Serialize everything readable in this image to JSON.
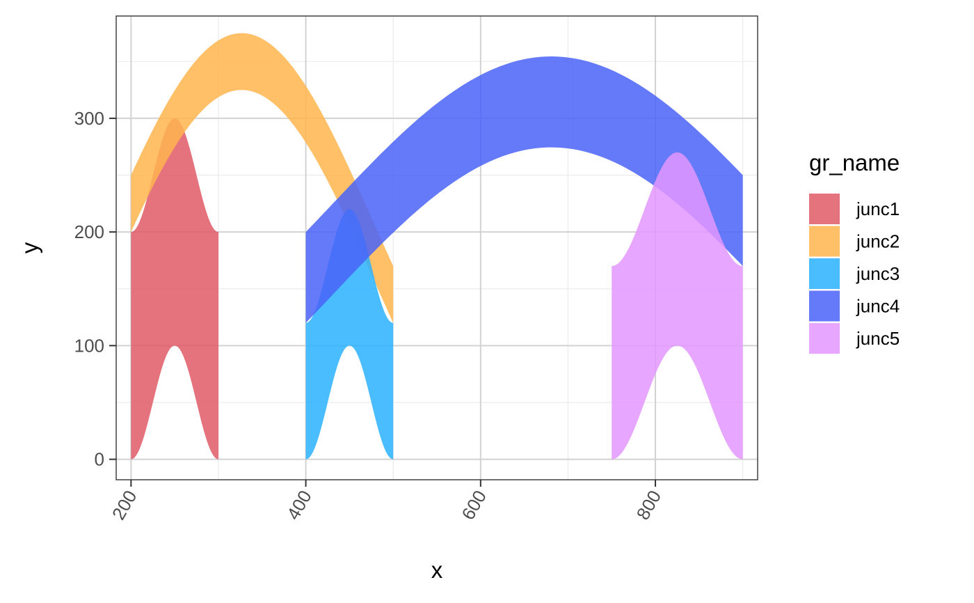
{
  "chart_data": {
    "type": "area",
    "title": "",
    "xlabel": "x",
    "ylabel": "y",
    "xlim": [
      183,
      917
    ],
    "ylim": [
      -18,
      390
    ],
    "x_ticks": [
      200,
      400,
      600,
      800
    ],
    "x_tick_labels": [
      "200",
      "400",
      "600",
      "800"
    ],
    "y_ticks": [
      0,
      100,
      200,
      300
    ],
    "y_tick_labels": [
      "0",
      "100",
      "200",
      "300"
    ],
    "x_minor_ticks": [
      300,
      500,
      700,
      900
    ],
    "y_minor_ticks": [
      50,
      150,
      250,
      350
    ],
    "grid": true,
    "legend": {
      "title": "gr_name",
      "position": "right"
    },
    "series": [
      {
        "name": "junc1",
        "color": "#E05B67",
        "x0": 200,
        "x1": 300,
        "upper": {
          "kind": "bump",
          "base": 200,
          "peak": 300
        },
        "lower": {
          "kind": "bump",
          "base": 0,
          "peak": 100
        }
      },
      {
        "name": "junc2",
        "color": "#FFB54D",
        "x0": 200,
        "x1": 500,
        "upper": {
          "kind": "arc",
          "start": 250,
          "end": 170,
          "peak": 370
        },
        "lower": {
          "kind": "arc",
          "start": 200,
          "end": 120,
          "peak": 320
        }
      },
      {
        "name": "junc3",
        "color": "#29B2FF",
        "x0": 400,
        "x1": 500,
        "upper": {
          "kind": "bump",
          "base": 120,
          "peak": 220
        },
        "lower": {
          "kind": "bump",
          "base": 0,
          "peak": 100
        }
      },
      {
        "name": "junc4",
        "color": "#4963F8",
        "x0": 400,
        "x1": 900,
        "upper": {
          "kind": "arc",
          "start": 200,
          "end": 250,
          "peak": 352
        },
        "lower": {
          "kind": "arc",
          "start": 120,
          "end": 170,
          "peak": 272
        }
      },
      {
        "name": "junc5",
        "color": "#E396FF",
        "x0": 750,
        "x1": 900,
        "upper": {
          "kind": "bump",
          "base": 170,
          "peak": 270
        },
        "lower": {
          "kind": "bump",
          "base": 0,
          "peak": 100
        }
      }
    ]
  }
}
